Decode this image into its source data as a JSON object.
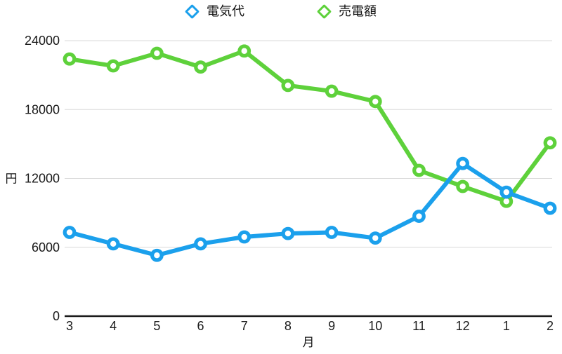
{
  "legend": {
    "items": [
      {
        "label": "電気代",
        "color": "#1ba0ec"
      },
      {
        "label": "売電額",
        "color": "#5ed13b"
      }
    ]
  },
  "chart_data": {
    "type": "line",
    "title": "",
    "categories": [
      "3",
      "4",
      "5",
      "6",
      "7",
      "8",
      "9",
      "10",
      "11",
      "12",
      "1",
      "2"
    ],
    "series": [
      {
        "name": "電気代",
        "color": "#1ba0ec",
        "values": [
          7300,
          6300,
          5300,
          6300,
          6900,
          7200,
          7300,
          6800,
          8700,
          13300,
          10800,
          9400
        ]
      },
      {
        "name": "売電額",
        "color": "#5ed13b",
        "values": [
          22400,
          21800,
          22900,
          21700,
          23100,
          20100,
          19600,
          18700,
          12700,
          11300,
          10000,
          15100
        ]
      }
    ],
    "xlabel": "月",
    "ylabel": "円",
    "yticks": [
      0,
      6000,
      12000,
      18000,
      24000
    ],
    "ylim": [
      0,
      24000
    ],
    "grid": true,
    "legend_position": "top",
    "grid_color": "#d8d8d8",
    "axis_color": "#1a1a1a"
  }
}
